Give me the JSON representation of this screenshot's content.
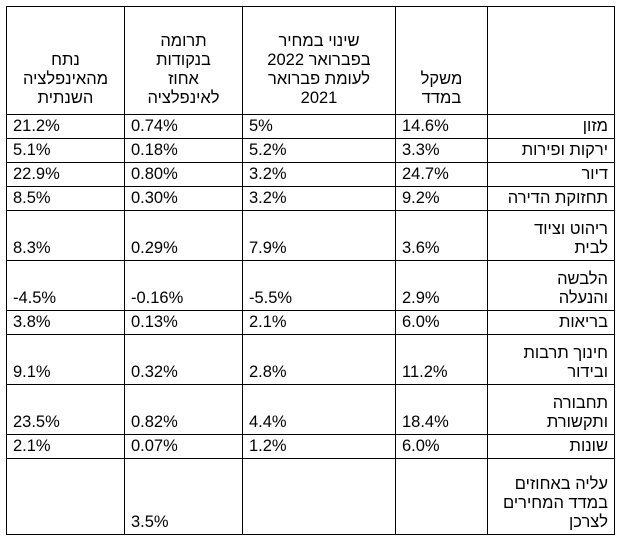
{
  "table": {
    "headers": {
      "category": "",
      "weight": "משקל\nבמדד",
      "price_change": "שינוי במחיר\nבפברואר 2022\nלעומת  פברואר\n2021",
      "contribution": "תרומה\nבנקודות\nאחוז\nלאינפלציה",
      "share": "נתח\nמהאינפלציה\nהשנתית"
    },
    "rows": [
      {
        "category": "מזון",
        "weight": "14.6%",
        "price_change": "5%",
        "contribution": "0.74%",
        "share": "21.2%"
      },
      {
        "category": "ירקות ופירות",
        "weight": "3.3%",
        "price_change": "5.2%",
        "contribution": "0.18%",
        "share": "5.1%"
      },
      {
        "category": "דיור",
        "weight": "24.7%",
        "price_change": "3.2%",
        "contribution": "0.80%",
        "share": "22.9%"
      },
      {
        "category": "תחזוקת הדירה",
        "weight": "9.2%",
        "price_change": "3.2%",
        "contribution": "0.30%",
        "share": "8.5%"
      },
      {
        "category": "ריהוט וציוד\nלבית",
        "weight": "3.6%",
        "price_change": "7.9%",
        "contribution": "0.29%",
        "share": "8.3%"
      },
      {
        "category": "הלבשה\nוהנעלה",
        "weight": "2.9%",
        "price_change": "-5.5%",
        "contribution": "-0.16%",
        "share": "-4.5%"
      },
      {
        "category": "בריאות",
        "weight": "6.0%",
        "price_change": "2.1%",
        "contribution": "0.13%",
        "share": "3.8%"
      },
      {
        "category": "חינוך תרבות\nובידור",
        "weight": "11.2%",
        "price_change": "2.8%",
        "contribution": "0.32%",
        "share": "9.1%"
      },
      {
        "category": "תחבורה\nותקשורת",
        "weight": "18.4%",
        "price_change": "4.4%",
        "contribution": "0.82%",
        "share": "23.5%"
      },
      {
        "category": "שונות",
        "weight": "6.0%",
        "price_change": "1.2%",
        "contribution": "0.07%",
        "share": "2.1%"
      },
      {
        "category": "עליה באחוזים\nבמדד המחירים\nלצרכן",
        "weight": "",
        "price_change": "",
        "contribution": "3.5%",
        "share": ""
      }
    ]
  }
}
